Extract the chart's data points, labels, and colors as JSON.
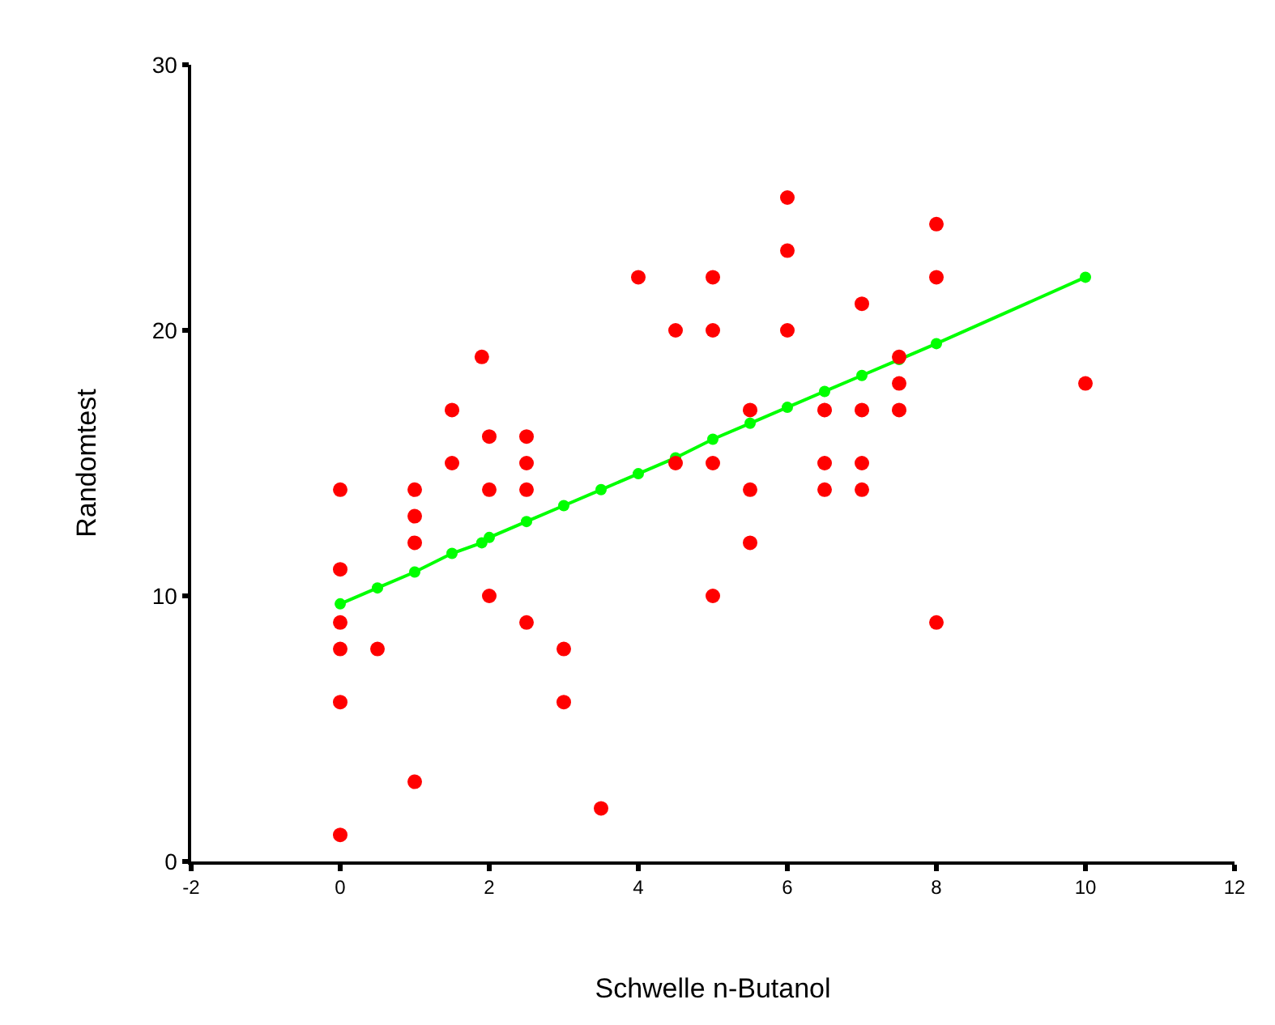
{
  "chart_data": {
    "type": "scatter",
    "xlabel": "Schwelle n-Butanol",
    "ylabel": "Randomtest",
    "xlim": [
      -2,
      12
    ],
    "xticks": [
      -2,
      0,
      2,
      4,
      6,
      8,
      10,
      12
    ],
    "ylim": [
      0,
      30
    ],
    "yticks": [
      0,
      10,
      20,
      30
    ],
    "marker": "circle",
    "series": [
      {
        "color": "#ff0000",
        "x": [
          0,
          0,
          0,
          0,
          0,
          0,
          0.5,
          1,
          1,
          1,
          1,
          1.5,
          1.5,
          1.9,
          2,
          2,
          2,
          2.5,
          2.5,
          2.5,
          2.5,
          3,
          3,
          3.5,
          4,
          4.5,
          4.5,
          5,
          5,
          5,
          5,
          5.5,
          5.5,
          5.5,
          6,
          6,
          6,
          6.5,
          6.5,
          6.5,
          7,
          7,
          7,
          7,
          7.5,
          7.5,
          7.5,
          8,
          8,
          8,
          10
        ],
        "values": [
          14,
          11,
          9,
          8,
          6,
          1,
          8,
          14,
          13,
          12,
          3,
          17,
          15,
          19,
          16,
          14,
          10,
          16,
          15,
          14,
          9,
          8,
          6,
          2,
          22,
          20,
          15,
          22,
          20,
          15,
          10,
          17,
          14,
          12,
          25,
          23,
          20,
          17,
          15,
          14,
          21,
          17,
          15,
          14,
          19,
          18,
          17,
          24,
          22,
          9,
          18
        ]
      },
      {
        "type": "line",
        "color": "#00ff00",
        "x": [
          0,
          0.5,
          1,
          1.5,
          1.9,
          2,
          2.5,
          3,
          3.5,
          4,
          4.5,
          5,
          5.5,
          6,
          6.5,
          7,
          7.5,
          8,
          10
        ],
        "values": [
          9.7,
          10.3,
          10.9,
          11.6,
          12.0,
          12.2,
          12.8,
          13.4,
          14.0,
          14.6,
          15.2,
          15.9,
          16.5,
          17.1,
          17.7,
          18.3,
          18.9,
          19.5,
          22.0
        ]
      }
    ]
  }
}
